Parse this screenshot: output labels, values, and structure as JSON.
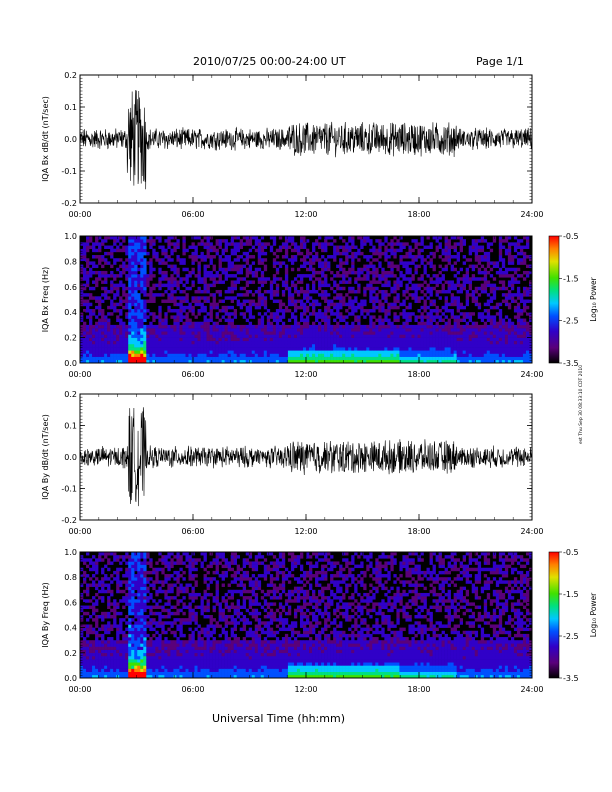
{
  "header": {
    "title": "2010/07/25  00:00-24:00 UT",
    "page": "Page 1/1"
  },
  "side_stamp": "est Thu Sep 30 08:33:10 CDT 2010",
  "colors": {
    "trace": "#000000",
    "colormap": [
      "#000000",
      "#5a007a",
      "#3000c8",
      "#0050ff",
      "#00c8ff",
      "#00e080",
      "#40e000",
      "#e0e000",
      "#ff8000",
      "#ff0000"
    ]
  },
  "chart_data": [
    {
      "type": "line",
      "ylabel": "IQA Bx dB/dt (nT/sec)",
      "xlim": [
        0,
        24
      ],
      "ylim": [
        -0.2,
        0.2
      ],
      "y_ticks": [
        "0.2",
        "0.1",
        "0.0",
        "-0.1",
        "-0.2"
      ],
      "x_ticks": [
        "00:00",
        "06:00",
        "12:00",
        "18:00",
        "24:00"
      ],
      "series": [
        {
          "values": "noise trace centered at 0.0, amplitude about ±0.05, strong bursts exceeding ±0.2 near 02:30-03:30 UT, elevated activity 11:00-20:00 UT"
        }
      ]
    },
    {
      "type": "heatmap",
      "ylabel": "IQA Bx Freq (Hz)",
      "xlim": [
        0,
        24
      ],
      "ylim": [
        0.0,
        1.0
      ],
      "y_ticks": [
        "1.0",
        "0.8",
        "0.6",
        "0.4",
        "0.2",
        "0.0"
      ],
      "x_ticks": [
        "00:00",
        "06:00",
        "12:00",
        "18:00",
        "24:00"
      ],
      "colorbar": {
        "label": "Log₁₀ Power",
        "ticks": [
          "-0.5",
          "-1.5",
          "-2.5",
          "-3.5"
        ],
        "range": [
          -3.5,
          -0.5
        ]
      }
    },
    {
      "type": "line",
      "ylabel": "IQA By dB/dt (nT/sec)",
      "xlim": [
        0,
        24
      ],
      "ylim": [
        -0.2,
        0.2
      ],
      "y_ticks": [
        "0.2",
        "0.1",
        "0.0",
        "-0.1",
        "-0.2"
      ],
      "x_ticks": [
        "00:00",
        "06:00",
        "12:00",
        "18:00",
        "24:00"
      ],
      "series": [
        {
          "values": "noise trace centered at 0.0, amplitude about ±0.05, strong bursts exceeding ±0.2 near 02:30-03:30 UT, elevated activity 11:00-20:00 UT"
        }
      ]
    },
    {
      "type": "heatmap",
      "ylabel": "IQA By Freq (Hz)",
      "xlim": [
        0,
        24
      ],
      "ylim": [
        0.0,
        1.0
      ],
      "y_ticks": [
        "1.0",
        "0.8",
        "0.6",
        "0.4",
        "0.2",
        "0.0"
      ],
      "x_ticks": [
        "00:00",
        "06:00",
        "12:00",
        "18:00",
        "24:00"
      ],
      "colorbar": {
        "label": "Log₁₀ Power",
        "ticks": [
          "-0.5",
          "-1.5",
          "-2.5",
          "-3.5"
        ],
        "range": [
          -3.5,
          -0.5
        ]
      }
    }
  ],
  "xlabel": "Universal Time (hh:mm)"
}
